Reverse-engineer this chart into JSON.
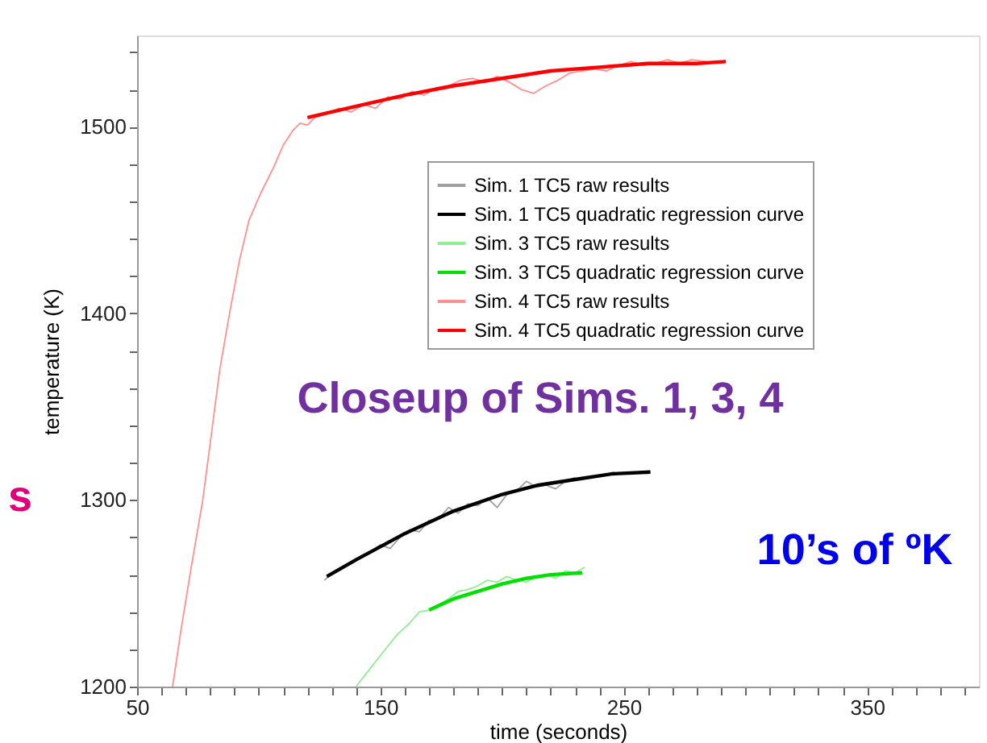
{
  "chart_data": {
    "type": "line",
    "xlabel": "time (seconds)",
    "ylabel": "temperature (K)",
    "xlim": [
      50,
      396
    ],
    "ylim": [
      1200,
      1549
    ],
    "xticks": [
      50,
      {
        "value": 60,
        "label": null
      },
      {
        "value": 70,
        "label": null
      },
      {
        "value": 80,
        "label": null
      },
      {
        "value": 90,
        "label": null
      },
      {
        "value": 100,
        "label": null
      },
      {
        "value": 110,
        "label": null
      },
      {
        "value": 120,
        "label": null
      },
      {
        "value": 130,
        "label": null
      },
      {
        "value": 140,
        "label": null
      },
      150,
      {
        "value": 160,
        "label": null
      },
      {
        "value": 170,
        "label": null
      },
      {
        "value": 180,
        "label": null
      },
      {
        "value": 190,
        "label": null
      },
      {
        "value": 200,
        "label": null
      },
      {
        "value": 210,
        "label": null
      },
      {
        "value": 220,
        "label": null
      },
      {
        "value": 230,
        "label": null
      },
      {
        "value": 240,
        "label": null
      },
      250,
      {
        "value": 260,
        "label": null
      },
      {
        "value": 270,
        "label": null
      },
      {
        "value": 280,
        "label": null
      },
      {
        "value": 290,
        "label": null
      },
      {
        "value": 300,
        "label": null
      },
      {
        "value": 310,
        "label": null
      },
      {
        "value": 320,
        "label": null
      },
      {
        "value": 330,
        "label": null
      },
      {
        "value": 340,
        "label": null
      },
      350,
      {
        "value": 360,
        "label": null
      },
      {
        "value": 370,
        "label": null
      },
      {
        "value": 380,
        "label": null
      },
      {
        "value": 390,
        "label": null
      }
    ],
    "yticks": [
      1200,
      {
        "value": 1220,
        "label": null
      },
      {
        "value": 1240,
        "label": null
      },
      {
        "value": 1260,
        "label": null
      },
      {
        "value": 1280,
        "label": null
      },
      1300,
      {
        "value": 1320,
        "label": null
      },
      {
        "value": 1340,
        "label": null
      },
      {
        "value": 1360,
        "label": null
      },
      {
        "value": 1380,
        "label": null
      },
      1400,
      {
        "value": 1420,
        "label": null
      },
      {
        "value": 1440,
        "label": null
      },
      {
        "value": 1460,
        "label": null
      },
      {
        "value": 1480,
        "label": null
      },
      1500,
      {
        "value": 1520,
        "label": null
      },
      {
        "value": 1540,
        "label": null
      }
    ],
    "grid": false,
    "legend": "right",
    "marker": "none",
    "line_style": "solid",
    "series": [
      {
        "name": "Sim. 1 TC5 raw results",
        "color": "#a0a0a0",
        "x": [
          127,
          130,
          134,
          138,
          142,
          146,
          150,
          154,
          158,
          162,
          166,
          170,
          174,
          178,
          182,
          186,
          190,
          194,
          198,
          202,
          206,
          210,
          214,
          218,
          222,
          226,
          230
        ],
        "values": [
          1257,
          1261,
          1264,
          1266,
          1270,
          1272,
          1276,
          1274,
          1280,
          1284,
          1283,
          1289,
          1290,
          1296,
          1293,
          1298,
          1297,
          1301,
          1296,
          1303,
          1305,
          1310,
          1307,
          1308,
          1306,
          1310,
          1312
        ]
      },
      {
        "name": "Sim. 1 TC5 quadratic regression curve",
        "color": "#000000",
        "x": [
          128,
          140,
          160,
          180,
          200,
          215,
          230,
          245,
          261
        ],
        "values": [
          1259,
          1268,
          1282,
          1294,
          1303,
          1308,
          1311,
          1314,
          1315
        ]
      },
      {
        "name": "Sim. 3 TC5 raw results",
        "color": "#90ee90",
        "x": [
          140,
          146,
          152,
          157,
          162,
          166,
          170,
          174,
          178,
          182,
          186,
          190,
          194,
          198,
          202,
          206,
          210,
          214,
          218,
          222,
          226,
          230,
          234
        ],
        "values": [
          1200,
          1210,
          1220,
          1228,
          1234,
          1240,
          1241,
          1244,
          1247,
          1251,
          1252,
          1254,
          1257,
          1256,
          1259,
          1257,
          1256,
          1259,
          1260,
          1258,
          1262,
          1261,
          1264
        ]
      },
      {
        "name": "Sim. 3 TC5 quadratic regression curve",
        "color": "#00e000",
        "x": [
          170,
          180,
          190,
          200,
          210,
          220,
          233
        ],
        "values": [
          1241,
          1247,
          1251,
          1255,
          1258,
          1260,
          1261
        ]
      },
      {
        "name": "Sim. 4 TC5 raw results",
        "color": "#ff9090",
        "x": [
          64.6,
          68,
          72,
          77,
          80,
          84,
          88,
          92,
          96,
          101,
          106,
          110,
          114,
          117,
          120,
          123,
          128,
          133,
          138,
          143,
          148,
          153,
          158,
          163,
          168,
          173,
          178,
          183,
          188,
          193,
          198,
          203,
          208,
          213,
          218,
          223,
          228,
          233,
          238,
          243,
          248,
          253,
          258,
          263,
          268,
          273,
          278,
          284
        ],
        "values": [
          1200,
          1230,
          1262,
          1300,
          1330,
          1370,
          1400,
          1428,
          1450,
          1465,
          1478,
          1490,
          1498,
          1502,
          1501,
          1505,
          1507,
          1510,
          1508,
          1512,
          1510,
          1516,
          1515,
          1519,
          1517,
          1521,
          1522,
          1525,
          1526,
          1524,
          1527,
          1524,
          1520,
          1518,
          1522,
          1525,
          1529,
          1530,
          1531,
          1530,
          1533,
          1535,
          1533,
          1534,
          1536,
          1534,
          1536,
          1535
        ]
      },
      {
        "name": "Sim. 4 TC5 quadratic regression curve",
        "color": "#ff0000",
        "x": [
          120,
          140,
          160,
          180,
          200,
          220,
          240,
          260,
          280,
          292
        ],
        "values": [
          1505,
          1511,
          1517,
          1522,
          1526,
          1530,
          1532,
          1534,
          1534,
          1535
        ]
      }
    ],
    "annotations": [
      "Closeup of Sims. 1, 3, 4",
      "10’s of ºK",
      "s"
    ]
  }
}
